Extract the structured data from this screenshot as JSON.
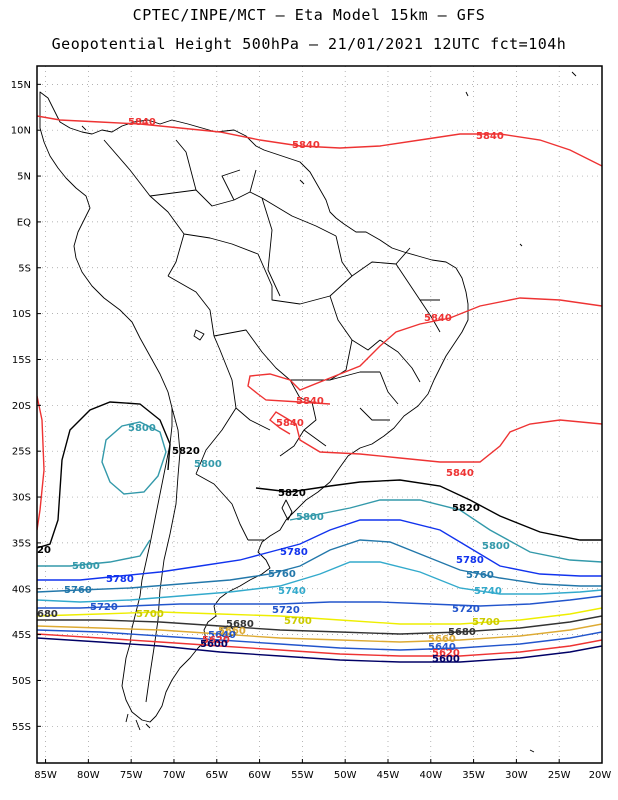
{
  "header": {
    "line1": "CPTEC/INPE/MCT –  Eta Model 15km – GFS",
    "line2": "Geopotential Height 500hPa – 21/01/2021 12UTC fct=104h"
  },
  "axes": {
    "lat_labels": [
      "15N",
      "10N",
      "5N",
      "EQ",
      "5S",
      "10S",
      "15S",
      "20S",
      "25S",
      "30S",
      "35S",
      "40S",
      "45S",
      "50S",
      "55S"
    ],
    "lon_labels": [
      "85W",
      "80W",
      "75W",
      "70W",
      "65W",
      "60W",
      "55W",
      "50W",
      "45W",
      "40W",
      "35W",
      "30W",
      "25W",
      "20W"
    ],
    "lon_range": [
      -86,
      -20
    ],
    "lat_range": [
      -59,
      17
    ],
    "grid": "dotted"
  },
  "contours": [
    {
      "level": 5840,
      "color": "#ee3333",
      "labels": [
        "5840",
        "5840",
        "5840",
        "5840",
        "5840",
        "5840",
        "5840"
      ]
    },
    {
      "level": 5820,
      "color": "#000000",
      "labels": [
        "5820",
        "5820",
        "5820",
        "20"
      ]
    },
    {
      "level": 5800,
      "color": "#3399aa",
      "labels": [
        "5800",
        "5800",
        "5800",
        "5800",
        "5800"
      ]
    },
    {
      "level": 5780,
      "color": "#1133ee",
      "labels": [
        "5780",
        "5780",
        "5780"
      ]
    },
    {
      "level": 5760,
      "color": "#2277aa",
      "labels": [
        "5760",
        "5760",
        "5760"
      ]
    },
    {
      "level": 5740,
      "color": "#33aacc",
      "labels": [
        "5740",
        "5740"
      ]
    },
    {
      "level": 5720,
      "color": "#2255cc",
      "labels": [
        "5720",
        "5720",
        "5720"
      ]
    },
    {
      "level": 5700,
      "color": "#eeee00",
      "labels": [
        "5700",
        "5700",
        "5700"
      ]
    },
    {
      "level": 5680,
      "color": "#333333",
      "labels": [
        "5680",
        "5680",
        "680"
      ]
    },
    {
      "level": 5660,
      "color": "#ddaa33",
      "labels": [
        "5660",
        "5660"
      ]
    },
    {
      "level": 5640,
      "color": "#2255cc",
      "labels": [
        "5640",
        "5640"
      ]
    },
    {
      "level": 5620,
      "color": "#ee3333",
      "labels": [
        "5620",
        "5620"
      ]
    },
    {
      "level": 5600,
      "color": "#000066",
      "labels": [
        "5600",
        "5600"
      ]
    }
  ]
}
